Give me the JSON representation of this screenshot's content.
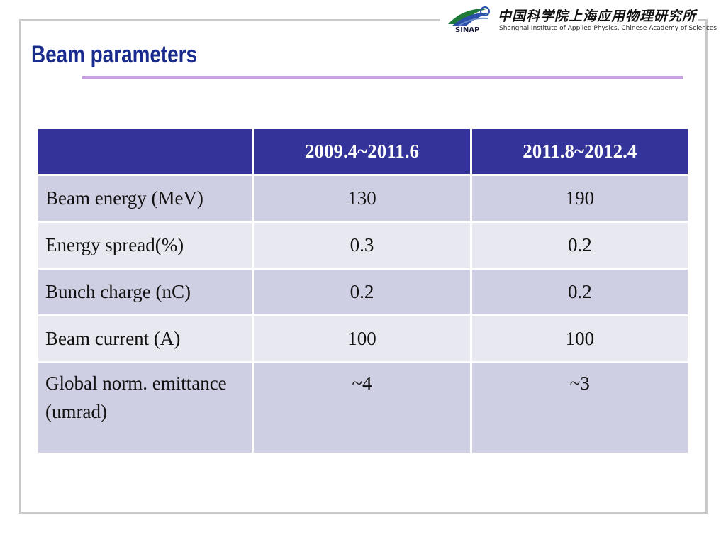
{
  "logo": {
    "acronym": "SINAP",
    "chinese_name": "中国科学院上海应用物理研究所",
    "english_name": "Shanghai Institute of Applied Physics, Chinese Academy of Sciences"
  },
  "slide": {
    "title": "Beam parameters"
  },
  "table": {
    "headers": [
      "",
      "2009.4~2011.6",
      "2011.8~2012.4"
    ],
    "rows": [
      {
        "label": "Beam energy (MeV)",
        "values": [
          "130",
          "190"
        ]
      },
      {
        "label": "Energy spread(%)",
        "values": [
          "0.3",
          "0.2"
        ]
      },
      {
        "label": "Bunch charge (nC)",
        "values": [
          "0.2",
          "0.2"
        ]
      },
      {
        "label": "Beam current (A)",
        "values": [
          "100",
          "100"
        ]
      },
      {
        "label": "Global norm. emittance (umrad)",
        "values": [
          "~4",
          "~3"
        ]
      }
    ]
  },
  "colors": {
    "title": "#1a2b8e",
    "rule": "#c89ee6",
    "header_bg": "#333399",
    "row_odd": "#cfcfe3",
    "row_even": "#e8e8f0"
  }
}
